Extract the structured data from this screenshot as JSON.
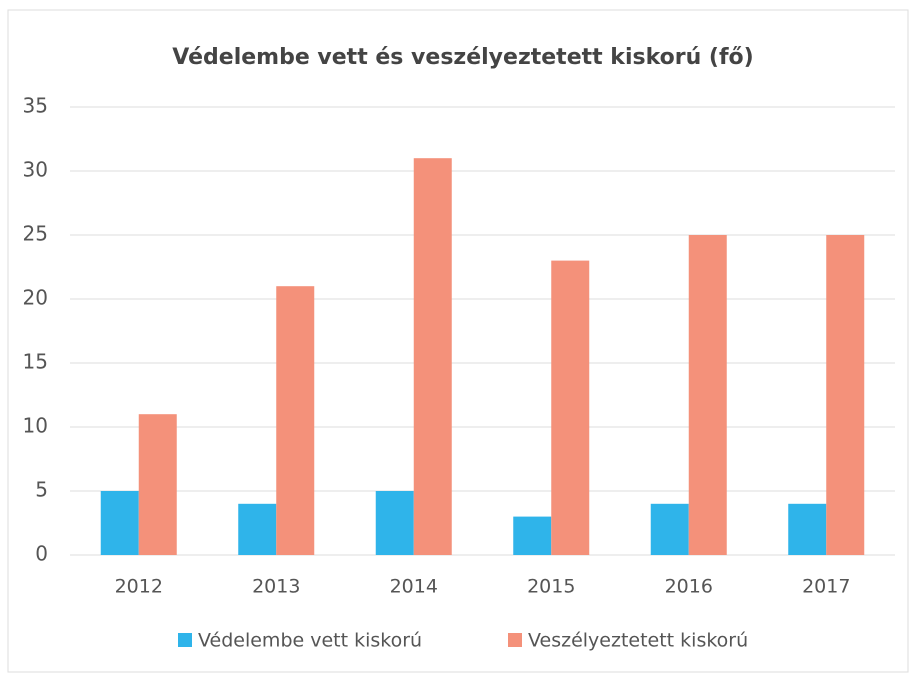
{
  "chart_data": {
    "type": "bar",
    "title": "Védelembe vett és veszélyeztetett kiskorú (fő)",
    "categories": [
      "2012",
      "2013",
      "2014",
      "2015",
      "2016",
      "2017"
    ],
    "series": [
      {
        "name": "Védelembe vett kiskorú",
        "color": "#2fb4ea",
        "values": [
          5,
          4,
          5,
          3,
          4,
          4
        ]
      },
      {
        "name": "Veszélyeztetett kiskorú",
        "color": "#f4917a",
        "values": [
          11,
          21,
          31,
          23,
          25,
          25
        ]
      }
    ],
    "ylim": [
      0,
      35
    ],
    "yticks": [
      0,
      5,
      10,
      15,
      20,
      25,
      30,
      35
    ],
    "grid": true,
    "legend": "bottom"
  }
}
